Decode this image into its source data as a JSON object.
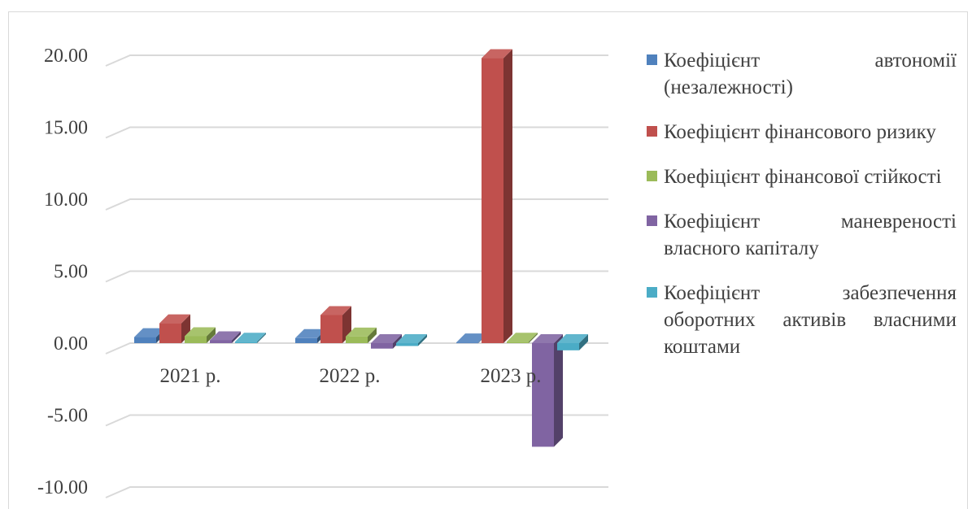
{
  "chart_data": {
    "type": "bar",
    "style": "3d-clustered-column",
    "categories": [
      "2021 р.",
      "2022 р.",
      "2023 р."
    ],
    "series": [
      {
        "name": "Коефіцієнт автономії (незалежності)",
        "values": [
          0.42,
          0.35,
          0.05
        ],
        "color": "#4f81bd"
      },
      {
        "name": "Коефіцієнт фінансового ризику",
        "values": [
          1.38,
          1.95,
          19.8
        ],
        "color": "#c0504d"
      },
      {
        "name": "Коефіцієнт фінансової стійкості",
        "values": [
          0.48,
          0.46,
          0.1
        ],
        "color": "#9bbb59"
      },
      {
        "name": "Коефіцієнт маневреності власного капіталу",
        "values": [
          0.2,
          -0.38,
          -7.2
        ],
        "color": "#8064a2"
      },
      {
        "name": "Коефіцієнт забезпечення оборотних активів власними коштами",
        "values": [
          0.1,
          -0.2,
          -0.5
        ],
        "color": "#4bacc6"
      }
    ],
    "y_ticks": [
      "20.00",
      "15.00",
      "10.00",
      "5.00",
      "0.00",
      "-5.00",
      "-10.00"
    ],
    "ylim": [
      -10,
      20
    ],
    "grid": true,
    "legend_position": "right",
    "xlabel": "",
    "ylabel": ""
  }
}
